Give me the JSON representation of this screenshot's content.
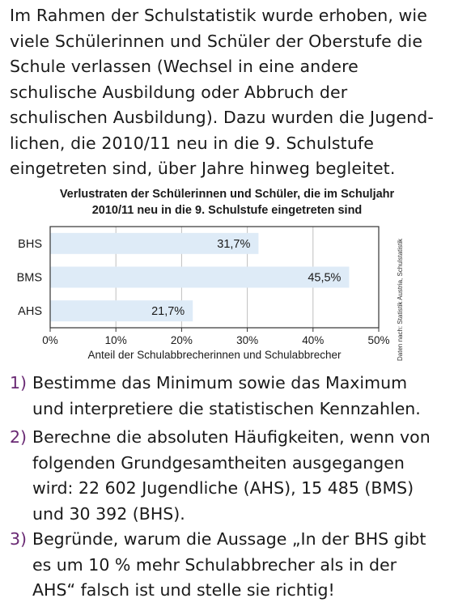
{
  "intro_lines": [
    "Im Rahmen der Schulstatistik wurde erhoben, wie",
    "viele Schülerinnen und Schüler der Oberstufe die",
    "Schule verlassen (Wechsel in eine andere",
    "schulische Ausbildung oder Abbruch der",
    "schulischen Ausbildung). Dazu wurden die Jugend-",
    "lichen, die 2010/11 neu in die 9. Schulstufe",
    "eingetreten sind, über Jahre hinweg begleitet."
  ],
  "chart_data": {
    "type": "bar",
    "orientation": "horizontal",
    "title_lines": [
      "Verlustraten der Schülerinnen und Schüler, die im Schuljahr",
      "2010/11 neu in die 9. Schulstufe eingetreten sind"
    ],
    "categories": [
      "BHS",
      "BMS",
      "AHS"
    ],
    "values": [
      31.7,
      45.5,
      21.7
    ],
    "value_labels": [
      "31,7%",
      "45,5%",
      "21,7%"
    ],
    "xlim": [
      0,
      50
    ],
    "ticks": [
      0,
      10,
      20,
      30,
      40,
      50
    ],
    "tick_labels": [
      "0%",
      "10%",
      "20%",
      "30%",
      "40%",
      "50%"
    ],
    "xlabel": "Anteil der Schulabbrecherinnen und Schulabbrecher",
    "ylabel": "",
    "grid": "vertical",
    "source_note": "Daten nach: Statistik Austria, Schulstatistik",
    "colors": {
      "bar": "#deebf7",
      "grid": "#bfbfbf",
      "frame": "#333333"
    }
  },
  "tasks": [
    {
      "number": "1)",
      "lines": [
        "Bestimme das Minimum sowie das Maximum",
        "und interpretiere die statistischen Kennzahlen."
      ]
    },
    {
      "number": "2)",
      "lines": [
        "Berechne die absoluten Häufigkeiten, wenn von",
        "folgenden Grundgesamtheiten ausgegangen",
        "wird: 22 602 Jugendliche (AHS), 15 485 (BMS)",
        "und 30 392 (BHS)."
      ]
    },
    {
      "number": "3)",
      "lines": [
        "Begründe, warum die Aussage „In der BHS gibt",
        "es um 10 % mehr Schulabbrecher als in der",
        "AHS“ falsch ist und stelle sie richtig!"
      ]
    }
  ],
  "accent_color": "#6a2a74"
}
